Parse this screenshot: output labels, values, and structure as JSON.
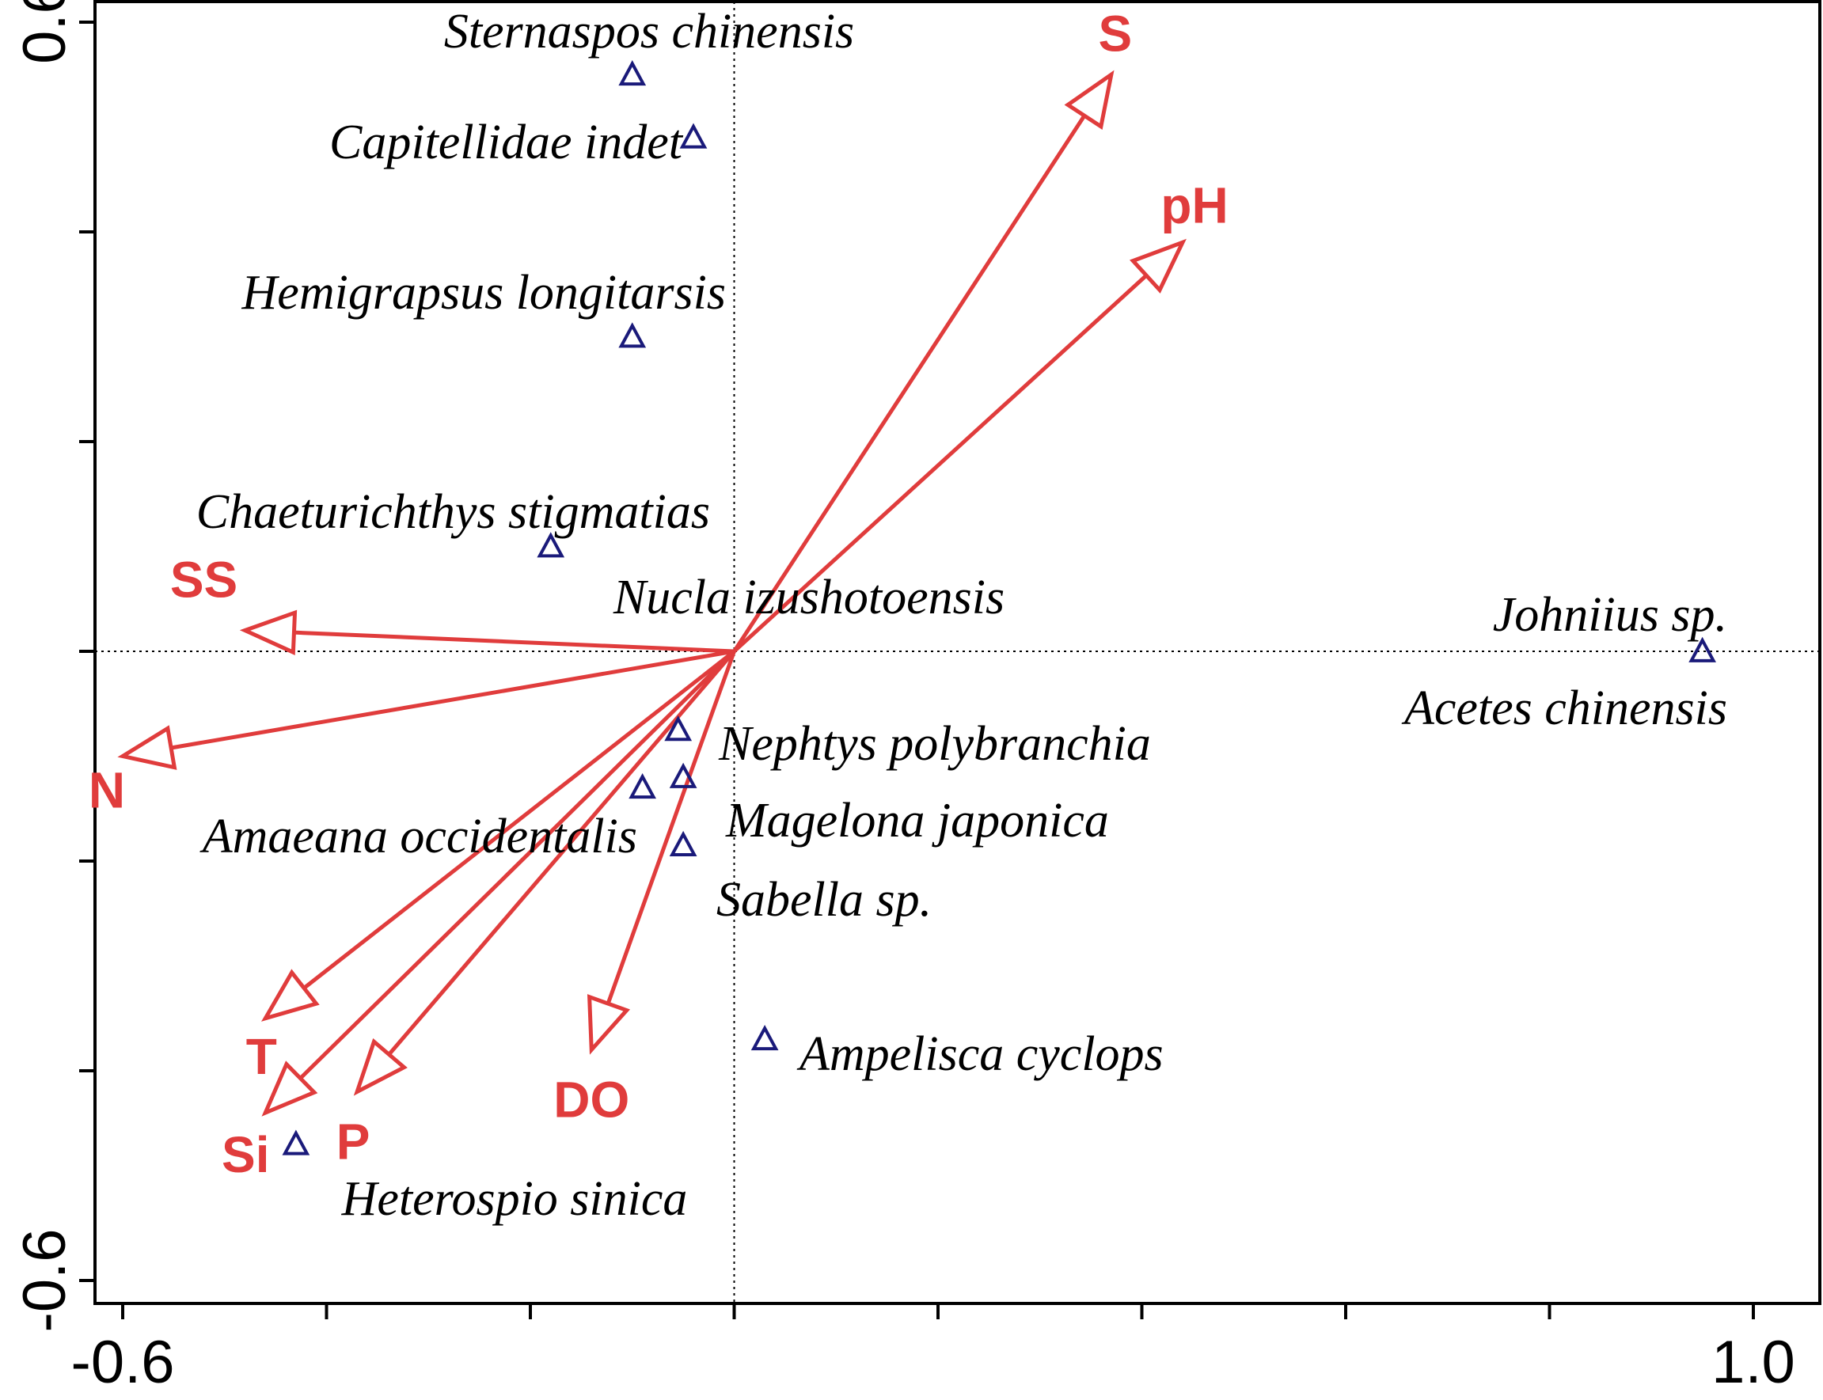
{
  "chart_data": {
    "type": "scatter",
    "title": "",
    "xlabel": "",
    "ylabel": "",
    "xlim": [
      -0.6,
      1.0
    ],
    "ylim": [
      -0.6,
      0.6
    ],
    "grid": false,
    "x_tick_values": [
      -0.6,
      -0.4,
      -0.2,
      0.0,
      0.2,
      0.4,
      0.6,
      0.8,
      1.0
    ],
    "x_tick_labels": [
      "-0.6",
      "",
      "",
      "",
      "",
      "",
      "",
      "",
      "1.0"
    ],
    "y_tick_values": [
      -0.6,
      -0.4,
      -0.2,
      0.0,
      0.2,
      0.4,
      0.6
    ],
    "y_tick_labels": [
      "-0.6",
      "",
      "",
      "",
      "",
      "",
      "0.6"
    ],
    "zero_lines": true,
    "colors": {
      "species": "#1a1a7a",
      "environment": "#e03c3c",
      "axis": "#000000"
    },
    "species_marker": "triangle-open",
    "species": [
      {
        "name": "Sternaspos chinensis",
        "x": -0.1,
        "y": 0.55
      },
      {
        "name": "Capitellidae indet",
        "x": -0.04,
        "y": 0.49
      },
      {
        "name": "Hemigrapsus longitarsis",
        "x": -0.1,
        "y": 0.3
      },
      {
        "name": "Chaeturichthys stigmatias",
        "x": -0.18,
        "y": 0.1
      },
      {
        "name": "Nucla izushotoensis",
        "x": -0.18,
        "y": 0.1
      },
      {
        "name": "Johniius sp.",
        "x": 0.95,
        "y": 0.0
      },
      {
        "name": "Acetes chinensis",
        "x": 0.95,
        "y": 0.0
      },
      {
        "name": "Nephtys polybranchia",
        "x": -0.055,
        "y": -0.075
      },
      {
        "name": "Magelona japonica",
        "x": -0.05,
        "y": -0.12
      },
      {
        "name": "Amaeana occidentalis",
        "x": -0.09,
        "y": -0.13
      },
      {
        "name": "Sabella sp.",
        "x": -0.05,
        "y": -0.185
      },
      {
        "name": "Ampelisca cyclops",
        "x": 0.03,
        "y": -0.37
      },
      {
        "name": "Heterospio sinica",
        "x": -0.43,
        "y": -0.47
      }
    ],
    "environment_vectors": [
      {
        "name": "S",
        "x": 0.37,
        "y": 0.55
      },
      {
        "name": "pH",
        "x": 0.44,
        "y": 0.39
      },
      {
        "name": "SS",
        "x": -0.48,
        "y": 0.02
      },
      {
        "name": "N",
        "x": -0.6,
        "y": -0.1
      },
      {
        "name": "T",
        "x": -0.46,
        "y": -0.35
      },
      {
        "name": "Si",
        "x": -0.46,
        "y": -0.44
      },
      {
        "name": "P",
        "x": -0.37,
        "y": -0.42
      },
      {
        "name": "DO",
        "x": -0.14,
        "y": -0.38
      }
    ]
  }
}
